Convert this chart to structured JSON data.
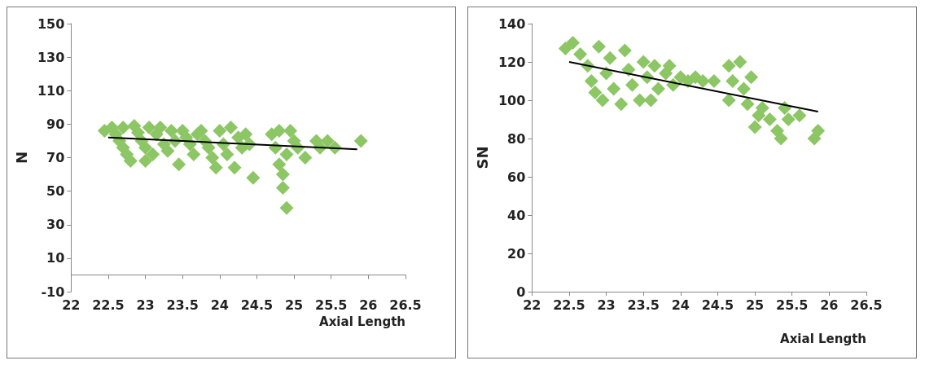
{
  "chart_data": [
    {
      "type": "scatter",
      "xlabel": "Axial Length",
      "ylabel": "N",
      "xlim": [
        22,
        26.5
      ],
      "xticks": [
        22,
        22.5,
        23,
        23.5,
        24,
        24.5,
        25,
        25.5,
        26,
        26.5
      ],
      "ylim": [
        -10,
        150
      ],
      "yticks": [
        -10,
        10,
        30,
        50,
        70,
        90,
        110,
        130,
        150
      ],
      "grid": false,
      "marker": "diamond",
      "series": [
        {
          "color": "#8cc665",
          "x": [
            22.45,
            22.55,
            22.6,
            22.65,
            22.7,
            22.75,
            22.8,
            22.7,
            22.85,
            22.9,
            22.95,
            23.0,
            23.0,
            23.05,
            23.1,
            23.15,
            23.2,
            23.25,
            23.3,
            23.35,
            23.4,
            23.45,
            23.5,
            23.55,
            23.6,
            23.65,
            23.7,
            23.75,
            23.8,
            23.85,
            23.9,
            23.95,
            24.0,
            24.05,
            24.1,
            24.15,
            24.2,
            24.25,
            24.3,
            24.35,
            24.4,
            24.45,
            24.7,
            24.75,
            24.8,
            24.8,
            24.85,
            24.85,
            24.9,
            24.9,
            24.95,
            25.0,
            25.05,
            25.15,
            25.3,
            25.35,
            25.45,
            25.55,
            25.9
          ],
          "values": [
            86,
            88,
            84,
            80,
            76,
            72,
            68,
            88,
            89,
            85,
            80,
            76,
            68,
            88,
            72,
            84,
            88,
            78,
            74,
            86,
            80,
            66,
            86,
            82,
            78,
            72,
            84,
            86,
            80,
            76,
            70,
            64,
            86,
            78,
            72,
            88,
            64,
            82,
            76,
            84,
            78,
            58,
            84,
            76,
            66,
            86,
            60,
            52,
            40,
            72,
            86,
            80,
            76,
            70,
            80,
            76,
            80,
            76,
            80
          ]
        },
        {
          "type": "line",
          "color": "#000000",
          "marker": "none",
          "x": [
            22.5,
            25.85
          ],
          "values": [
            82,
            75
          ]
        }
      ]
    },
    {
      "type": "scatter",
      "xlabel": "Axial Length",
      "ylabel": "SN",
      "xlim": [
        22,
        26.5
      ],
      "xticks": [
        22,
        22.5,
        23,
        23.5,
        24,
        24.5,
        25,
        25.5,
        26,
        26.5
      ],
      "ylim": [
        0,
        140
      ],
      "yticks": [
        0,
        20,
        40,
        60,
        80,
        100,
        120,
        140
      ],
      "grid": false,
      "marker": "diamond",
      "series": [
        {
          "color": "#8cc665",
          "x": [
            22.45,
            22.55,
            22.65,
            22.75,
            22.8,
            22.85,
            22.9,
            22.95,
            23.0,
            23.05,
            23.1,
            23.2,
            23.25,
            23.3,
            23.35,
            23.45,
            23.5,
            23.55,
            23.6,
            23.65,
            23.7,
            23.8,
            23.85,
            23.9,
            24.0,
            24.1,
            24.2,
            24.3,
            24.45,
            24.65,
            24.7,
            24.65,
            24.8,
            24.85,
            24.9,
            24.95,
            25.0,
            25.05,
            25.1,
            25.2,
            25.3,
            25.35,
            25.4,
            25.45,
            25.6,
            25.8,
            25.85
          ],
          "values": [
            127,
            130,
            124,
            118,
            110,
            104,
            128,
            100,
            114,
            122,
            106,
            98,
            126,
            116,
            108,
            100,
            120,
            112,
            100,
            118,
            106,
            114,
            118,
            108,
            112,
            110,
            112,
            110,
            110,
            118,
            110,
            100,
            120,
            106,
            98,
            112,
            86,
            92,
            96,
            90,
            84,
            80,
            96,
            90,
            92,
            80,
            84
          ]
        },
        {
          "type": "line",
          "color": "#000000",
          "marker": "none",
          "x": [
            22.5,
            25.85
          ],
          "values": [
            120,
            94
          ]
        }
      ]
    }
  ]
}
